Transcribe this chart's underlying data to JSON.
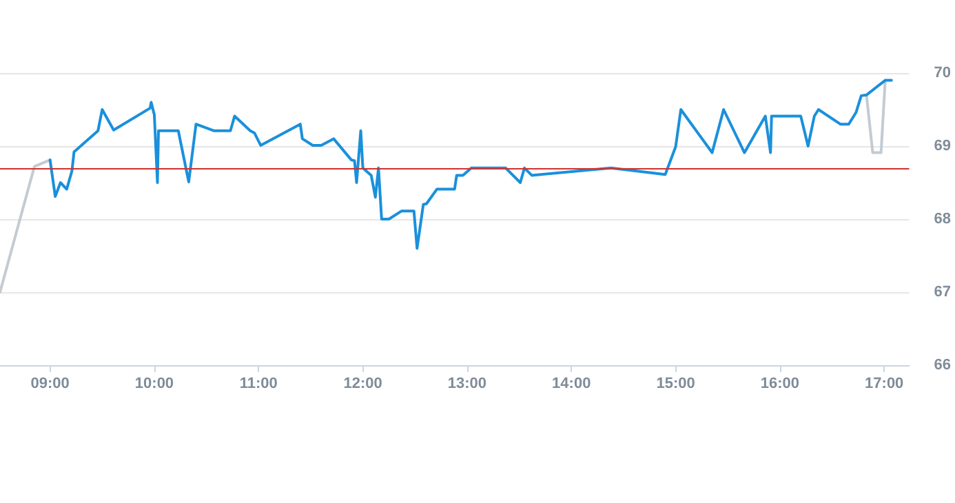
{
  "chart_data": {
    "type": "line",
    "xlim": [
      8.52,
      17.24
    ],
    "xticks": [
      {
        "value": 9,
        "label": "09:00"
      },
      {
        "value": 10,
        "label": "10:00"
      },
      {
        "value": 11,
        "label": "11:00"
      },
      {
        "value": 12,
        "label": "12:00"
      },
      {
        "value": 13,
        "label": "13:00"
      },
      {
        "value": 14,
        "label": "14:00"
      },
      {
        "value": 15,
        "label": "15:00"
      },
      {
        "value": 16,
        "label": "16:00"
      },
      {
        "value": 17,
        "label": "17:00"
      }
    ],
    "ylim": [
      66,
      70
    ],
    "yticks": [
      66,
      67,
      68,
      69,
      70
    ],
    "grid": "y",
    "marker": "none",
    "line_style": "solid",
    "ref_lines": [
      {
        "axis": "y",
        "value": 68.7,
        "color": "#d0312d"
      }
    ],
    "series": [
      {
        "color": "#c3cbd3",
        "x": [
          8.52,
          8.85,
          9.0
        ],
        "values": [
          67.0,
          68.72,
          68.81
        ]
      },
      {
        "color": "#c3cbd3",
        "x": [
          16.83,
          16.89,
          16.97,
          17.01
        ],
        "values": [
          69.7,
          68.91,
          68.91,
          69.9
        ]
      },
      {
        "color": "#1a90db",
        "x": [
          9.0,
          9.05,
          9.1,
          9.16,
          9.21,
          9.23,
          9.46,
          9.5,
          9.61,
          9.96,
          9.97,
          10.0,
          10.03,
          10.04,
          10.23,
          10.33,
          10.4,
          10.57,
          10.73,
          10.77,
          10.92,
          10.96,
          11.02,
          11.4,
          11.42,
          11.52,
          11.6,
          11.72,
          11.89,
          11.92,
          11.94,
          11.98,
          12.0,
          12.08,
          12.12,
          12.15,
          12.18,
          12.25,
          12.37,
          12.49,
          12.52,
          12.58,
          12.61,
          12.71,
          12.88,
          12.9,
          12.96,
          13.04,
          13.37,
          13.51,
          13.55,
          13.62,
          14.38,
          14.9,
          15.0,
          15.05,
          15.35,
          15.46,
          15.66,
          15.86,
          15.91,
          15.92,
          16.2,
          16.27,
          16.33,
          16.37,
          16.58,
          16.66,
          16.73,
          16.78,
          16.83,
          17.01,
          17.07
        ],
        "values": [
          68.81,
          68.31,
          68.5,
          68.41,
          68.66,
          68.92,
          69.21,
          69.5,
          69.22,
          69.52,
          69.6,
          69.43,
          68.5,
          69.21,
          69.21,
          68.51,
          69.3,
          69.21,
          69.21,
          69.41,
          69.21,
          69.18,
          69.01,
          69.3,
          69.1,
          69.01,
          69.01,
          69.1,
          68.81,
          68.8,
          68.5,
          69.21,
          68.7,
          68.6,
          68.3,
          68.7,
          68.0,
          68.0,
          68.11,
          68.11,
          67.6,
          68.2,
          68.21,
          68.41,
          68.41,
          68.6,
          68.6,
          68.7,
          68.7,
          68.5,
          68.7,
          68.6,
          68.7,
          68.61,
          68.99,
          69.5,
          68.91,
          69.5,
          68.91,
          69.41,
          68.91,
          69.41,
          69.41,
          69.0,
          69.41,
          69.5,
          69.3,
          69.3,
          69.46,
          69.69,
          69.7,
          69.9,
          69.9
        ]
      }
    ]
  }
}
